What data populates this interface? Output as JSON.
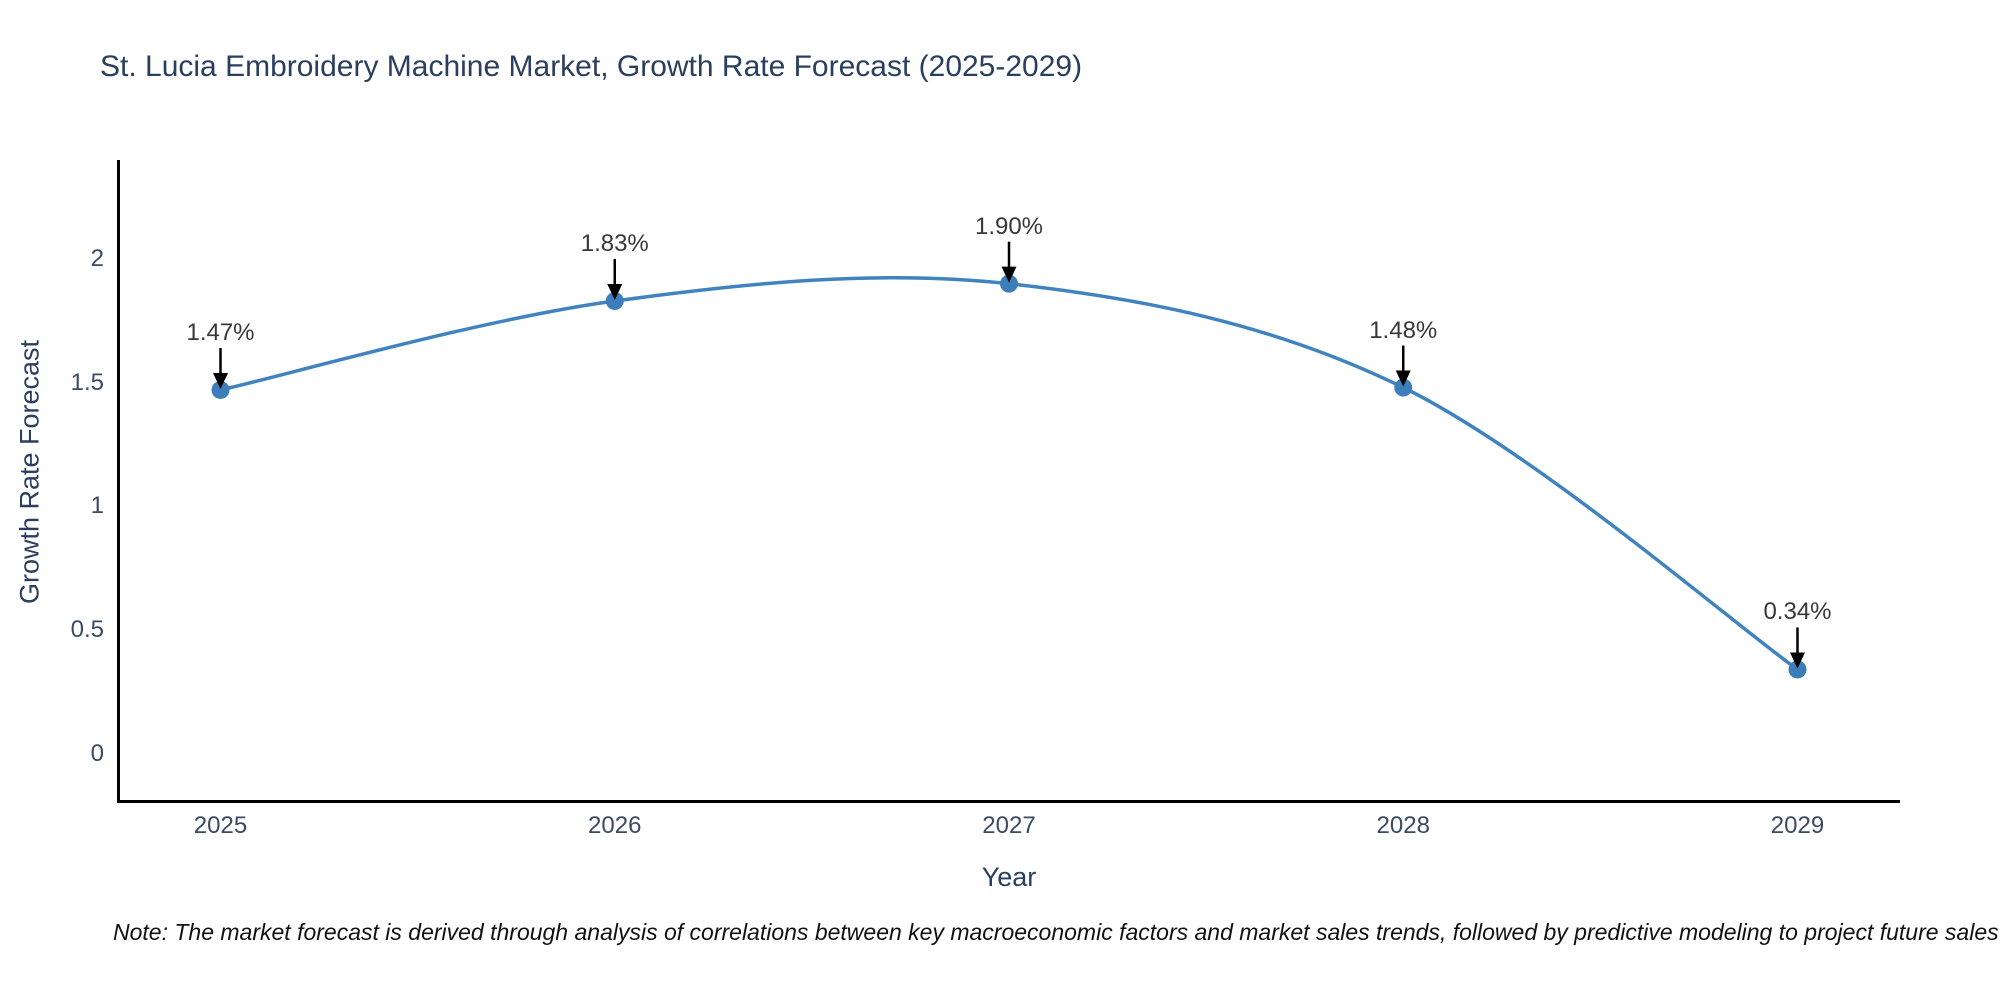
{
  "chart_data": {
    "type": "line",
    "title": "St. Lucia Embroidery Machine Market, Growth Rate Forecast (2025-2029)",
    "xlabel": "Year",
    "ylabel": "Growth Rate Forecast",
    "x": [
      2025,
      2026,
      2027,
      2028,
      2029
    ],
    "y": [
      1.47,
      1.83,
      1.9,
      1.48,
      0.34
    ],
    "series_name": "Growth Rate Forecast",
    "point_labels": [
      "1.47%",
      "1.83%",
      "1.90%",
      "1.48%",
      "0.34%"
    ],
    "xticks": {
      "values": [
        2025,
        2026,
        2027,
        2028,
        2029
      ],
      "labels": [
        "2025",
        "2026",
        "2027",
        "2028",
        "2029"
      ]
    },
    "yticks": {
      "values": [
        0,
        0.5,
        1,
        1.5,
        2
      ],
      "labels": [
        "0",
        "0.5",
        "1",
        "1.5",
        "2"
      ]
    },
    "xlim": [
      2024.74,
      2029.26
    ],
    "ylim": [
      -0.2,
      2.4
    ],
    "grid": false,
    "legend": null,
    "curve": "smooth",
    "line_color": "#4083bf",
    "marker_color": "#3d7eba",
    "annotation_text_color": "#383838",
    "arrow_color": "#000000",
    "axis_line_color": "#000000",
    "title_color": "#2a3f5f",
    "tick_color": "#3b4a63",
    "background_color": "#ffffff"
  },
  "footnote": {
    "text": "Note: The market forecast is derived through analysis of correlations between key macroeconomic factors and market sales trends, followed by predictive modeling to project future sales"
  }
}
